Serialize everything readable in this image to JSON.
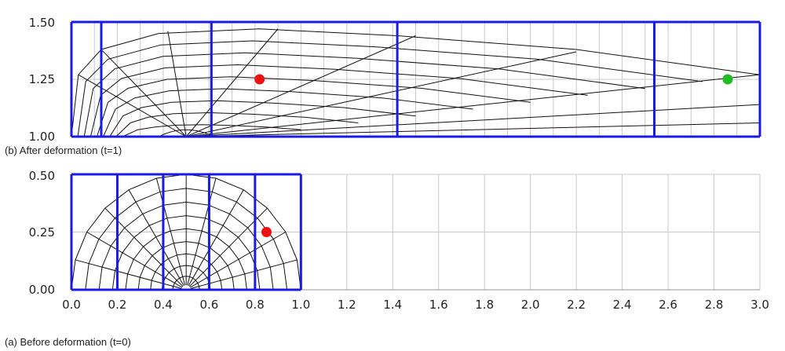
{
  "colors": {
    "grid": "#c8c8c8",
    "mesh": "#111111",
    "partition": "#1a1ae6",
    "point_red": "#ee1111",
    "point_green": "#22bb22"
  },
  "panels": [
    {
      "id": "after",
      "caption": "(b) After deformation (t=1)",
      "y_ticks": [
        "1.00",
        "1.25",
        "1.50"
      ],
      "x_ticks": [],
      "ylim": [
        1.0,
        1.5
      ],
      "xlim": [
        0,
        3.0
      ]
    },
    {
      "id": "before",
      "caption": "(a) Before deformation (t=0)",
      "y_ticks": [
        "0.00",
        "0.25",
        "0.50"
      ],
      "x_ticks": [
        "0.0",
        "0.2",
        "0.4",
        "0.6",
        "0.8",
        "1.0",
        "1.2",
        "1.4",
        "1.6",
        "1.8",
        "2.0",
        "2.2",
        "2.4",
        "2.6",
        "2.8",
        "3.0"
      ],
      "ylim": [
        0,
        0.5
      ],
      "xlim": [
        0,
        3.0
      ]
    }
  ],
  "after_partitions_x": [
    0,
    0.13,
    0.61,
    1.42,
    2.54,
    3.0
  ],
  "before_partitions_x": [
    0,
    0.2,
    0.4,
    0.6,
    0.8,
    1.0
  ],
  "points": {
    "before_red": [
      0.85,
      0.25
    ],
    "after_red": [
      0.82,
      1.25
    ],
    "after_green": [
      2.86,
      1.25
    ]
  }
}
